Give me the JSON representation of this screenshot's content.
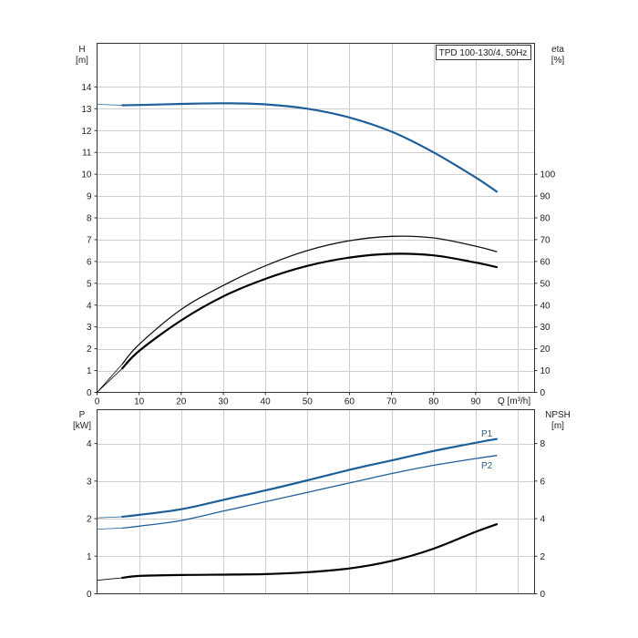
{
  "chart_data": [
    {
      "type": "line",
      "title": "TPD 100-130/4, 50Hz",
      "xlabel": "Q [m³/h]",
      "x_ticks": [
        "0",
        "10",
        "20",
        "30",
        "40",
        "50",
        "60",
        "70",
        "80",
        "90"
      ],
      "xlim": [
        0,
        104
      ],
      "left_axis": {
        "label_line1": "H",
        "label_line2": "[m]",
        "ylim": [
          0,
          16
        ],
        "ticks": [
          "0",
          "1",
          "2",
          "3",
          "4",
          "5",
          "6",
          "7",
          "8",
          "9",
          "10",
          "11",
          "12",
          "13",
          "14"
        ]
      },
      "right_axis": {
        "label_line1": "eta",
        "label_line2": "[%]",
        "ylim": [
          0,
          160
        ],
        "ticks": [
          "0",
          "10",
          "20",
          "30",
          "40",
          "50",
          "60",
          "70",
          "80",
          "90",
          "100"
        ]
      },
      "grid": true,
      "series": [
        {
          "axis": "left",
          "color": "#1f5f99",
          "x": [
            6,
            10,
            20,
            30,
            40,
            50,
            60,
            70,
            80,
            90,
            95
          ],
          "y": [
            13.16,
            13.17,
            13.22,
            13.25,
            13.2,
            13.0,
            12.6,
            11.95,
            11.0,
            9.85,
            9.2
          ],
          "extension": {
            "x": [
              0,
              6
            ],
            "y": [
              13.2,
              13.16
            ]
          }
        },
        {
          "axis": "right",
          "color": "#111111",
          "x": [
            6,
            10,
            20,
            30,
            40,
            50,
            60,
            70,
            80,
            90,
            95
          ],
          "y": [
            13,
            22,
            38,
            49,
            58,
            65,
            69.5,
            71.5,
            70.8,
            67,
            64.5
          ],
          "extension": {
            "x": [
              0,
              6
            ],
            "y": [
              0,
              13
            ]
          }
        },
        {
          "axis": "right",
          "color": "#000000",
          "x": [
            6,
            10,
            20,
            30,
            40,
            50,
            60,
            70,
            80,
            90,
            95
          ],
          "y": [
            11,
            19,
            33,
            44,
            52,
            58,
            61.8,
            63.5,
            62.8,
            59.5,
            57.4
          ],
          "extension": {
            "x": [
              0,
              6
            ],
            "y": [
              0,
              11
            ]
          }
        }
      ]
    },
    {
      "type": "line",
      "title": "",
      "xlim": [
        0,
        104
      ],
      "left_axis": {
        "label_line1": "P",
        "label_line2": "[kW]",
        "ylim": [
          0,
          4.9
        ],
        "ticks": [
          "0",
          "1",
          "2",
          "3",
          "4"
        ]
      },
      "right_axis": {
        "label_line1": "NPSH",
        "label_line2": "[m]",
        "ylim": [
          0,
          9.8
        ],
        "ticks": [
          "0",
          "2",
          "4",
          "6",
          "8"
        ]
      },
      "grid": true,
      "series": [
        {
          "name": "P1",
          "axis": "left",
          "color": "#1f5f99",
          "x": [
            6,
            10,
            20,
            30,
            40,
            50,
            60,
            70,
            80,
            90,
            95
          ],
          "y": [
            2.05,
            2.1,
            2.25,
            2.5,
            2.75,
            3.02,
            3.3,
            3.55,
            3.8,
            4.02,
            4.12
          ],
          "extension": {
            "x": [
              0,
              6
            ],
            "y": [
              2.02,
              2.05
            ]
          }
        },
        {
          "name": "P2",
          "axis": "left",
          "color": "#1f5f99",
          "x": [
            6,
            10,
            20,
            30,
            40,
            50,
            60,
            70,
            80,
            90,
            95
          ],
          "y": [
            1.75,
            1.8,
            1.95,
            2.2,
            2.45,
            2.7,
            2.95,
            3.2,
            3.42,
            3.6,
            3.68
          ],
          "extension": {
            "x": [
              0,
              6
            ],
            "y": [
              1.72,
              1.75
            ]
          }
        },
        {
          "axis": "right",
          "color": "#000000",
          "x": [
            6,
            10,
            20,
            30,
            40,
            50,
            60,
            70,
            80,
            90,
            95
          ],
          "y": [
            0.85,
            0.95,
            1.0,
            1.02,
            1.05,
            1.15,
            1.35,
            1.75,
            2.4,
            3.3,
            3.7
          ],
          "extension": {
            "x": [
              0,
              6
            ],
            "y": [
              0.72,
              0.85
            ]
          }
        }
      ]
    }
  ]
}
